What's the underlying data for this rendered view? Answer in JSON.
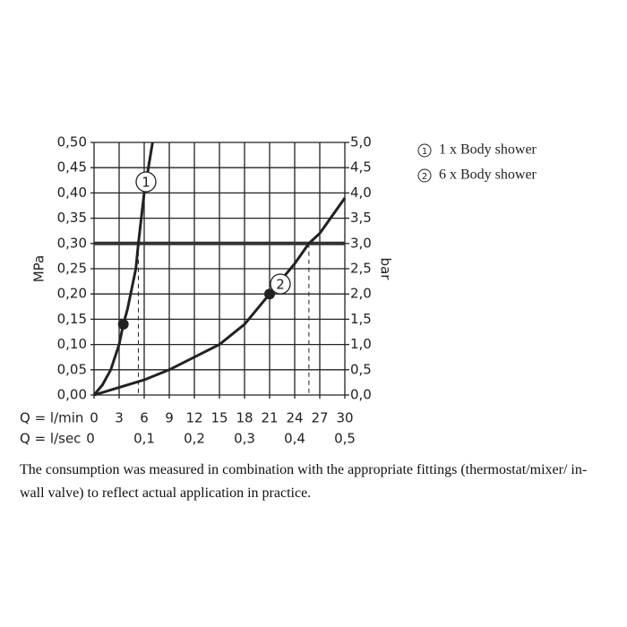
{
  "chart_data": {
    "type": "line",
    "x_label": "Q = l/min",
    "x2_label": "Q = l/sec",
    "y_label": "MPa",
    "y2_label": "bar",
    "xlim": [
      0,
      30
    ],
    "xticks": [
      0,
      3,
      6,
      9,
      12,
      15,
      18,
      21,
      24,
      27,
      30
    ],
    "x2lim": [
      0,
      0.5
    ],
    "x2ticks": [
      0,
      {
        "value": 0.1,
        "label": "0,1"
      },
      {
        "value": 0.2,
        "label": "0,2"
      },
      {
        "value": 0.3,
        "label": "0,3"
      },
      {
        "value": 0.4,
        "label": "0,4"
      },
      {
        "value": 0.5,
        "label": "0,5"
      }
    ],
    "ylim": [
      0,
      0.5
    ],
    "yticks": [
      {
        "value": 0,
        "label": "0,00"
      },
      {
        "value": 0.05,
        "label": "0,05"
      },
      {
        "value": 0.1,
        "label": "0,10"
      },
      {
        "value": 0.15,
        "label": "0,15"
      },
      {
        "value": 0.2,
        "label": "0,20"
      },
      {
        "value": 0.25,
        "label": "0,25"
      },
      {
        "value": 0.3,
        "label": "0,30"
      },
      {
        "value": 0.35,
        "label": "0,35"
      },
      {
        "value": 0.4,
        "label": "0,40"
      },
      {
        "value": 0.45,
        "label": "0,45"
      },
      {
        "value": 0.5,
        "label": "0,50"
      }
    ],
    "y2lim": [
      0,
      5
    ],
    "y2ticks": [
      {
        "value": 0,
        "label": "0,0"
      },
      {
        "value": 0.5,
        "label": "0,5"
      },
      {
        "value": 1,
        "label": "1,0"
      },
      {
        "value": 1.5,
        "label": "1,5"
      },
      {
        "value": 2,
        "label": "2,0"
      },
      {
        "value": 2.5,
        "label": "2,5"
      },
      {
        "value": 3,
        "label": "3,0"
      },
      {
        "value": 3.5,
        "label": "3,5"
      },
      {
        "value": 4,
        "label": "4,0"
      },
      {
        "value": 4.5,
        "label": "4,5"
      },
      {
        "value": 5,
        "label": "5,0"
      }
    ],
    "grid": true,
    "reference_y": 0.3,
    "dashed_x": [
      5.3,
      25.7
    ],
    "series": [
      {
        "name": "1 x Body shower",
        "label": "1",
        "color": "#222",
        "x": [
          0,
          1,
          2,
          3,
          3.5,
          4,
          5,
          5.3,
          6,
          7
        ],
        "values": [
          0,
          0.02,
          0.05,
          0.1,
          0.14,
          0.17,
          0.25,
          0.3,
          0.4,
          0.5
        ]
      },
      {
        "name": "6 x Body shower",
        "label": "2",
        "color": "#222",
        "x": [
          0,
          3,
          6,
          9,
          12,
          15,
          18,
          21,
          24,
          25.7,
          27,
          30
        ],
        "values": [
          0,
          0.015,
          0.03,
          0.05,
          0.075,
          0.1,
          0.14,
          0.2,
          0.26,
          0.3,
          0.32,
          0.39
        ]
      }
    ],
    "note": "The consumption was measured in combination with the appropriate fittings (thermostat/mixer/ in-wall valve) to reflect actual application in practice."
  }
}
